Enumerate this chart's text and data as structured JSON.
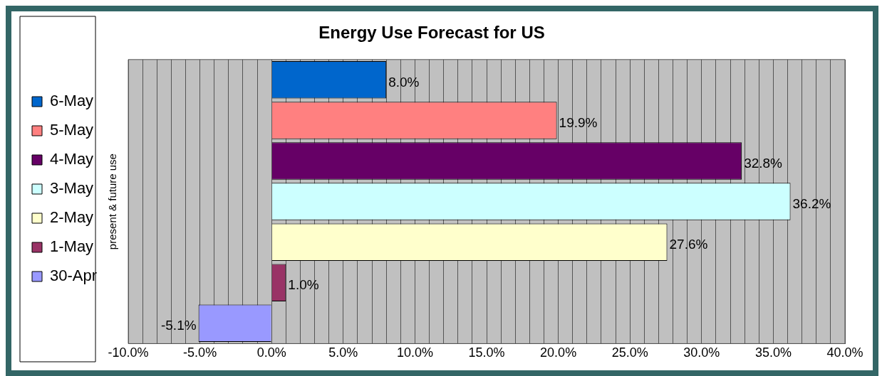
{
  "chart_data": {
    "type": "bar",
    "orientation": "horizontal",
    "title": "Energy Use Forecast for US",
    "ylabel": "present & future use",
    "categories": [
      null,
      null,
      null,
      null,
      null,
      null,
      null
    ],
    "series": [
      {
        "name": "6-May",
        "color": "#0066cc",
        "values": [
          8.0,
          null,
          null,
          null,
          null,
          null,
          null
        ],
        "value_labels": [
          "8.0%",
          null,
          null,
          null,
          null,
          null,
          null
        ]
      },
      {
        "name": "5-May",
        "color": "#ff8080",
        "values": [
          null,
          19.9,
          null,
          null,
          null,
          null,
          null
        ],
        "value_labels": [
          null,
          "19.9%",
          null,
          null,
          null,
          null,
          null
        ]
      },
      {
        "name": "4-May",
        "color": "#660066",
        "values": [
          null,
          null,
          32.8,
          null,
          null,
          null,
          null
        ],
        "value_labels": [
          null,
          null,
          "32.8%",
          null,
          null,
          null,
          null
        ]
      },
      {
        "name": "3-May",
        "color": "#ccffff",
        "values": [
          null,
          null,
          null,
          36.2,
          null,
          null,
          null
        ],
        "value_labels": [
          null,
          null,
          null,
          "36.2%",
          null,
          null,
          null
        ]
      },
      {
        "name": "2-May",
        "color": "#ffffcc",
        "values": [
          null,
          null,
          null,
          null,
          27.6,
          null,
          null
        ],
        "value_labels": [
          null,
          null,
          null,
          null,
          "27.6%",
          null,
          null
        ]
      },
      {
        "name": "1-May",
        "color": "#993366",
        "values": [
          null,
          null,
          null,
          null,
          null,
          1.0,
          null
        ],
        "value_labels": [
          null,
          null,
          null,
          null,
          null,
          "1.0%",
          null
        ]
      },
      {
        "name": "30-Apr",
        "color": "#9999ff",
        "values": [
          null,
          null,
          null,
          null,
          null,
          null,
          -5.1
        ],
        "value_labels": [
          null,
          null,
          null,
          null,
          null,
          null,
          "-5.1%"
        ]
      }
    ],
    "xlim": [
      -10,
      40
    ],
    "xticks": [
      {
        "value": -10,
        "label": "-10.0%"
      },
      {
        "value": -9,
        "label": null
      },
      {
        "value": -8,
        "label": null
      },
      {
        "value": -7,
        "label": null
      },
      {
        "value": -6,
        "label": null
      },
      {
        "value": -5,
        "label": "-5.0%"
      },
      {
        "value": -4,
        "label": null
      },
      {
        "value": -3,
        "label": null
      },
      {
        "value": -2,
        "label": null
      },
      {
        "value": -1,
        "label": null
      },
      {
        "value": 0,
        "label": "0.0%"
      },
      {
        "value": 1,
        "label": null
      },
      {
        "value": 2,
        "label": null
      },
      {
        "value": 3,
        "label": null
      },
      {
        "value": 4,
        "label": null
      },
      {
        "value": 5,
        "label": "5.0%"
      },
      {
        "value": 6,
        "label": null
      },
      {
        "value": 7,
        "label": null
      },
      {
        "value": 8,
        "label": null
      },
      {
        "value": 9,
        "label": null
      },
      {
        "value": 10,
        "label": "10.0%"
      },
      {
        "value": 11,
        "label": null
      },
      {
        "value": 12,
        "label": null
      },
      {
        "value": 13,
        "label": null
      },
      {
        "value": 14,
        "label": null
      },
      {
        "value": 15,
        "label": "15.0%"
      },
      {
        "value": 16,
        "label": null
      },
      {
        "value": 17,
        "label": null
      },
      {
        "value": 18,
        "label": null
      },
      {
        "value": 19,
        "label": null
      },
      {
        "value": 20,
        "label": "20.0%"
      },
      {
        "value": 21,
        "label": null
      },
      {
        "value": 22,
        "label": null
      },
      {
        "value": 23,
        "label": null
      },
      {
        "value": 24,
        "label": null
      },
      {
        "value": 25,
        "label": "25.0%"
      },
      {
        "value": 26,
        "label": null
      },
      {
        "value": 27,
        "label": null
      },
      {
        "value": 28,
        "label": null
      },
      {
        "value": 29,
        "label": null
      },
      {
        "value": 30,
        "label": "30.0%"
      },
      {
        "value": 31,
        "label": null
      },
      {
        "value": 32,
        "label": null
      },
      {
        "value": 33,
        "label": null
      },
      {
        "value": 34,
        "label": null
      },
      {
        "value": 35,
        "label": "35.0%"
      },
      {
        "value": 36,
        "label": null
      },
      {
        "value": 37,
        "label": null
      },
      {
        "value": 38,
        "label": null
      },
      {
        "value": 39,
        "label": null
      },
      {
        "value": 40,
        "label": "40.0%"
      }
    ],
    "grid": "x",
    "legend": "left",
    "tick_labels": "x"
  }
}
